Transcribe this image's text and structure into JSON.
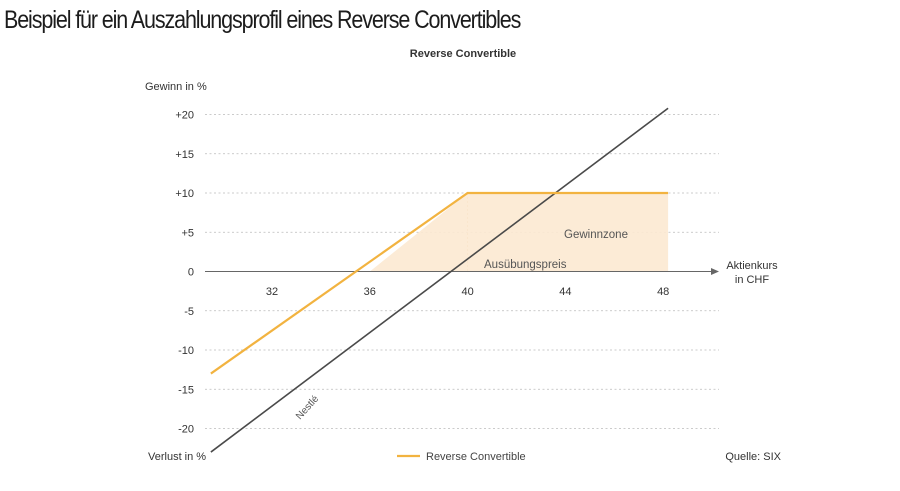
{
  "page_title": "Beispiel für ein Auszahlungsprofil eines Reverse Convertibles",
  "chart_data": {
    "type": "line",
    "title": "Reverse Convertible",
    "ylabel_top": "Gewinn in %",
    "ylabel_bottom": "Verlust in %",
    "xlabel_line1": "Aktienkurs",
    "xlabel_line2": "in CHF",
    "source": "Quelle: SIX",
    "xlim": [
      28,
      48
    ],
    "ylim": [
      -20,
      20
    ],
    "x_ticks": [
      32,
      36,
      40,
      44,
      48
    ],
    "y_ticks": [
      20,
      15,
      10,
      5,
      0,
      -5,
      -10,
      -15,
      -20
    ],
    "y_tick_labels": [
      "+20",
      "+15",
      "+10",
      "+5",
      "0",
      "-5",
      "-10",
      "-15",
      "-20"
    ],
    "grid": true,
    "legend_position": "bottom-center",
    "colors": {
      "reverse_convertible": "#f2b340",
      "nestle": "#4a4a4a",
      "zone_fill": "#fce9d1",
      "grid": "#bbbbbb"
    },
    "series": [
      {
        "name": "Reverse Convertible",
        "x": [
          29.5,
          40,
          48.2
        ],
        "y": [
          -13,
          10,
          10
        ]
      },
      {
        "name": "Nestlé",
        "x": [
          29.5,
          48.2
        ],
        "y": [
          -23,
          20.8
        ]
      }
    ],
    "annotations": {
      "gewinnzone": "Gewinnzone",
      "ausuebungspreis": "Ausübungspreis",
      "strike_x": 40,
      "series_label": "Nestlé"
    }
  }
}
